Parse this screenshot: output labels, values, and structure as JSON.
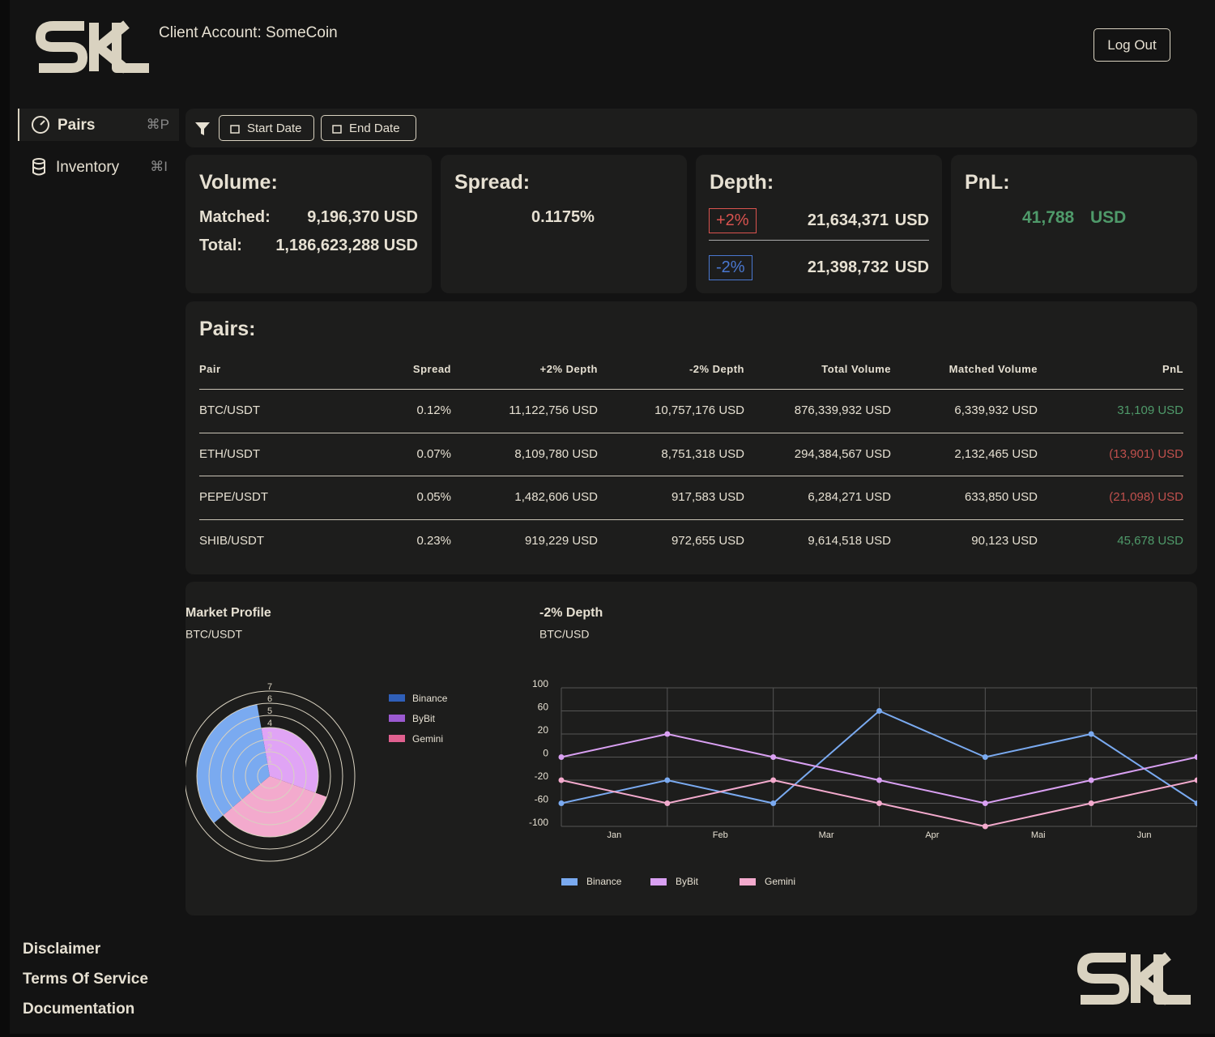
{
  "header": {
    "account": "Client Account: SomeCoin",
    "logout": "Log Out"
  },
  "sidebar": [
    {
      "label": "Pairs",
      "shortcut": "⌘P"
    },
    {
      "label": "Inventory",
      "shortcut": "⌘I"
    }
  ],
  "filters": [
    "Start Date",
    "End Date"
  ],
  "cards": {
    "volume": {
      "title": "Volume:",
      "rows": [
        [
          "Matched:",
          "9,196,370 USD"
        ],
        [
          "Total:",
          "1,186,623,288 USD"
        ]
      ]
    },
    "spread": {
      "title": "Spread:",
      "value": "0.1175%"
    },
    "depth": {
      "title": "Depth:",
      "rows": [
        [
          "+2%",
          "21,634,371",
          "USD"
        ],
        [
          "-2%",
          "21,398,732",
          "USD"
        ]
      ]
    },
    "pnl": {
      "title": "PnL:",
      "value": "41,788",
      "unit": "USD"
    }
  },
  "table": {
    "title": "Pairs:",
    "columns": [
      "Pair",
      "Spread",
      "+2% Depth",
      "-2% Depth",
      "Total Volume",
      "Matched Volume",
      "PnL"
    ],
    "rows": [
      [
        "BTC/USDT",
        "0.12%",
        "11,122,756 USD",
        "10,757,176 USD",
        "876,339,932 USD",
        "6,339,932 USD",
        "31,109 USD"
      ],
      [
        "ETH/USDT",
        "0.07%",
        "8,109,780 USD",
        "8,751,318 USD",
        "294,384,567 USD",
        "2,132,465 USD",
        "(13,901) USD"
      ],
      [
        "PEPE/USDT",
        "0.05%",
        "1,482,606 USD",
        "917,583 USD",
        "6,284,271 USD",
        "633,850 USD",
        "(21,098) USD"
      ],
      [
        "SHIB/USDT",
        "0.23%",
        "919,229 USD",
        "972,655 USD",
        "9,614,518 USD",
        "90,123 USD",
        "45,678 USD"
      ]
    ]
  },
  "chart_data": [
    {
      "type": "polarArea",
      "title": "Market Profile",
      "subtitle": "BTC/USDT",
      "categories": [
        "Binance",
        "ByBit",
        "Gemini"
      ],
      "values": [
        6,
        4,
        5
      ],
      "colors": [
        "#7aaaf0",
        "#e0a4f5",
        "#f3aacd"
      ],
      "legend_colors": [
        "#2f5fb8",
        "#9b59d0",
        "#e0608f"
      ],
      "rlim": [
        0,
        7
      ],
      "rticks": [
        1,
        2,
        3,
        4,
        5,
        6,
        7
      ],
      "legend": "right"
    },
    {
      "type": "line",
      "title": "-2% Depth",
      "subtitle": "BTC/USD",
      "categories": [
        "Jan",
        "Feb",
        "Mar",
        "Apr",
        "Mai",
        "Jun",
        null
      ],
      "series": [
        {
          "name": "Binance",
          "color": "#7aaaf0",
          "values": [
            -60,
            -20,
            -60,
            60,
            0,
            20,
            -60
          ]
        },
        {
          "name": "ByBit",
          "color": "#d9a0f2",
          "values": [
            0,
            20,
            0,
            -20,
            -60,
            -20,
            0
          ]
        },
        {
          "name": "Gemini",
          "color": "#f3aacd",
          "values": [
            -20,
            -60,
            -20,
            -60,
            -100,
            -60,
            -20
          ]
        }
      ],
      "ylim": [
        -100,
        100
      ],
      "yticks": [
        -100,
        -60,
        -20,
        0,
        20,
        60,
        100
      ],
      "grid": true,
      "legend": "bottom"
    }
  ],
  "footer": [
    "Disclaimer",
    "Terms Of Service",
    "Documentation"
  ]
}
